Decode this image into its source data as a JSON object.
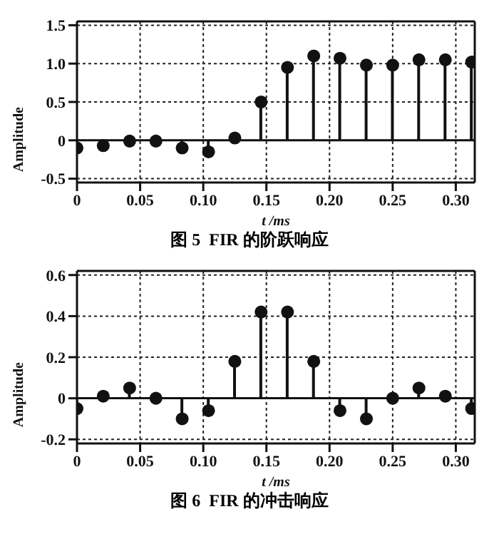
{
  "chart_data": [
    {
      "type": "lollipop",
      "title": "图 5  FIR 的阶跃响应",
      "xlabel": "t /ms",
      "ylabel": "Amplitude",
      "x": [
        0,
        0.0208,
        0.0417,
        0.0625,
        0.0833,
        0.1042,
        0.125,
        0.1458,
        0.1667,
        0.1875,
        0.2083,
        0.2292,
        0.25,
        0.2708,
        0.2917,
        0.3125
      ],
      "values": [
        -0.1,
        -0.07,
        -0.01,
        -0.01,
        -0.1,
        -0.15,
        0.03,
        0.5,
        0.95,
        1.1,
        1.07,
        0.98,
        0.98,
        1.05,
        1.05,
        1.02
      ],
      "color": "#111111",
      "xlim": [
        0,
        0.315
      ],
      "xticks": [
        0,
        {
          "value": 0.05,
          "label": "0.05"
        },
        {
          "value": 0.1,
          "label": "0.10"
        },
        {
          "value": 0.15,
          "label": "0.15"
        },
        {
          "value": 0.2,
          "label": "0.20"
        },
        {
          "value": 0.25,
          "label": "0.25"
        },
        {
          "value": 0.3,
          "label": "0.30"
        }
      ],
      "ylim": [
        -0.55,
        1.55
      ],
      "yticks": [
        {
          "value": -0.5,
          "label": "-0.5"
        },
        0,
        {
          "value": 0.5,
          "label": "0.5"
        },
        {
          "value": 1,
          "label": "1.0"
        },
        {
          "value": 1.5,
          "label": "1.5"
        }
      ],
      "grid": true,
      "marker": "circle",
      "ref_lines": [
        {
          "axis": "y",
          "value": 0
        }
      ]
    },
    {
      "type": "lollipop",
      "title": "图 6  FIR 的冲击响应",
      "xlabel": "t /ms",
      "ylabel": "Amplitude",
      "x": [
        0,
        0.0208,
        0.0417,
        0.0625,
        0.0833,
        0.1042,
        0.125,
        0.1458,
        0.1667,
        0.1875,
        0.2083,
        0.2292,
        0.25,
        0.2708,
        0.2917,
        0.3125
      ],
      "values": [
        -0.05,
        0.01,
        0.05,
        0.0,
        -0.1,
        -0.06,
        0.18,
        0.42,
        0.42,
        0.18,
        -0.06,
        -0.1,
        0.0,
        0.05,
        0.01,
        -0.05
      ],
      "color": "#111111",
      "xlim": [
        0,
        0.315
      ],
      "xticks": [
        0,
        {
          "value": 0.05,
          "label": "0.05"
        },
        {
          "value": 0.1,
          "label": "0.10"
        },
        {
          "value": 0.15,
          "label": "0.15"
        },
        {
          "value": 0.2,
          "label": "0.20"
        },
        {
          "value": 0.25,
          "label": "0.25"
        },
        {
          "value": 0.3,
          "label": "0.30"
        }
      ],
      "ylim": [
        -0.22,
        0.62
      ],
      "yticks": [
        {
          "value": -0.2,
          "label": "-0.2"
        },
        0,
        {
          "value": 0.2,
          "label": "0.2"
        },
        {
          "value": 0.4,
          "label": "0.4"
        },
        {
          "value": 0.6,
          "label": "0.6"
        }
      ],
      "grid": true,
      "marker": "circle",
      "ref_lines": [
        {
          "axis": "y",
          "value": 0
        }
      ]
    }
  ]
}
